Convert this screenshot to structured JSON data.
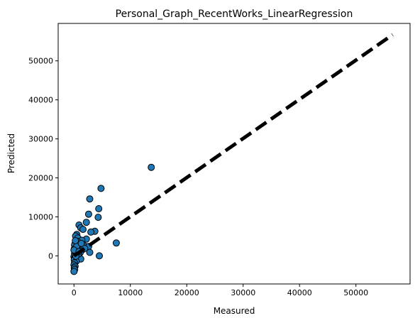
{
  "chart_data": {
    "type": "scatter",
    "title": "Personal_Graph_RecentWorks_LinearRegression",
    "xlabel": "Measured",
    "ylabel": "Predicted",
    "xlim": [
      -2800,
      59600
    ],
    "ylim": [
      -7200,
      59600
    ],
    "xticks": [
      0,
      10000,
      20000,
      30000,
      40000,
      50000
    ],
    "yticks": [
      0,
      10000,
      20000,
      30000,
      40000,
      50000
    ],
    "xtick_labels": [
      "0",
      "10000",
      "20000",
      "30000",
      "40000",
      "50000"
    ],
    "ytick_labels": [
      "0",
      "10000",
      "20000",
      "30000",
      "40000",
      "50000"
    ],
    "grid": false,
    "marker_color": "#1f77b4",
    "marker_edge_color": "#000000",
    "reference_line": {
      "style": "dashed",
      "color": "#000000",
      "from": [
        0,
        0
      ],
      "to": [
        56500,
        56700
      ]
    },
    "points": [
      {
        "x": 13700,
        "y": 22700
      },
      {
        "x": 4800,
        "y": 17300
      },
      {
        "x": 2800,
        "y": 14600
      },
      {
        "x": 4400,
        "y": 12100
      },
      {
        "x": 2600,
        "y": 10700
      },
      {
        "x": 4300,
        "y": 9900
      },
      {
        "x": 2200,
        "y": 8600
      },
      {
        "x": 900,
        "y": 7900
      },
      {
        "x": 1200,
        "y": 7200
      },
      {
        "x": 1600,
        "y": 6800
      },
      {
        "x": 3700,
        "y": 6300
      },
      {
        "x": 3000,
        "y": 6100
      },
      {
        "x": 500,
        "y": 5500
      },
      {
        "x": 300,
        "y": 5100
      },
      {
        "x": 700,
        "y": 4600
      },
      {
        "x": 2200,
        "y": 4300
      },
      {
        "x": 1400,
        "y": 4000
      },
      {
        "x": 600,
        "y": 3700
      },
      {
        "x": 7500,
        "y": 3300
      },
      {
        "x": 200,
        "y": 3100
      },
      {
        "x": 100,
        "y": 2800
      },
      {
        "x": 1800,
        "y": 2600
      },
      {
        "x": 2600,
        "y": 2400
      },
      {
        "x": 1000,
        "y": 2200
      },
      {
        "x": 400,
        "y": 2000
      },
      {
        "x": 50,
        "y": 1800
      },
      {
        "x": 1500,
        "y": 1600
      },
      {
        "x": 700,
        "y": 1400
      },
      {
        "x": 200,
        "y": 1200
      },
      {
        "x": 2800,
        "y": 900
      },
      {
        "x": 1100,
        "y": 800
      },
      {
        "x": 100,
        "y": 600
      },
      {
        "x": 300,
        "y": 300
      },
      {
        "x": 4500,
        "y": 0
      },
      {
        "x": 600,
        "y": 100
      },
      {
        "x": 0,
        "y": -200
      },
      {
        "x": 150,
        "y": -500
      },
      {
        "x": 1200,
        "y": -800
      },
      {
        "x": 50,
        "y": -1000
      },
      {
        "x": 400,
        "y": -1400
      },
      {
        "x": 100,
        "y": -1800
      },
      {
        "x": 0,
        "y": -2300
      },
      {
        "x": 200,
        "y": -2700
      },
      {
        "x": 50,
        "y": -3100
      },
      {
        "x": 100,
        "y": -3500
      },
      {
        "x": 0,
        "y": -4000
      },
      {
        "x": 800,
        "y": 500
      },
      {
        "x": 1900,
        "y": 1900
      },
      {
        "x": 500,
        "y": 2500
      },
      {
        "x": 1300,
        "y": 3200
      },
      {
        "x": 250,
        "y": 3900
      },
      {
        "x": 0,
        "y": 1500
      },
      {
        "x": 350,
        "y": -100
      },
      {
        "x": 900,
        "y": 1100
      }
    ]
  }
}
